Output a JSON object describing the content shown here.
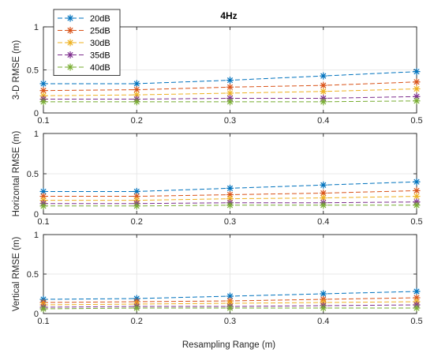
{
  "figure": {
    "title": "4Hz",
    "xlabel": "Resampling Range (m)",
    "legend": [
      "20dB",
      "25dB",
      "30dB",
      "35dB",
      "40dB"
    ],
    "legend_position": "top-left (outside first panel)"
  },
  "colors": {
    "20dB": "#0072BD",
    "25dB": "#D95319",
    "30dB": "#EDB120",
    "35dB": "#7E2F8E",
    "40dB": "#77AC30",
    "axis": "#262626",
    "grid": "#e3e3e3"
  },
  "chart_data": [
    {
      "type": "line",
      "title": "4Hz",
      "xlabel": "",
      "ylabel": "3-D RMSE (m)",
      "x": [
        0.1,
        0.2,
        0.3,
        0.4,
        0.5
      ],
      "xlim": [
        0.1,
        0.5
      ],
      "ylim": [
        0,
        1
      ],
      "xticks": [
        "0.1",
        "0.2",
        "0.3",
        "0.4",
        "0.5"
      ],
      "yticks": [
        "0",
        "0.5",
        "1"
      ],
      "grid": true,
      "legend": "top-left",
      "series": [
        {
          "name": "20dB",
          "values": [
            0.34,
            0.34,
            0.38,
            0.43,
            0.48
          ]
        },
        {
          "name": "25dB",
          "values": [
            0.26,
            0.27,
            0.3,
            0.32,
            0.36
          ]
        },
        {
          "name": "30dB",
          "values": [
            0.2,
            0.21,
            0.23,
            0.25,
            0.28
          ]
        },
        {
          "name": "35dB",
          "values": [
            0.16,
            0.16,
            0.17,
            0.17,
            0.19
          ]
        },
        {
          "name": "40dB",
          "values": [
            0.13,
            0.13,
            0.13,
            0.13,
            0.14
          ]
        }
      ]
    },
    {
      "type": "line",
      "title": "",
      "xlabel": "",
      "ylabel": "Horizontal RMSE (m)",
      "x": [
        0.1,
        0.2,
        0.3,
        0.4,
        0.5
      ],
      "xlim": [
        0.1,
        0.5
      ],
      "ylim": [
        0,
        1
      ],
      "xticks": [
        "0.1",
        "0.2",
        "0.3",
        "0.4",
        "0.5"
      ],
      "yticks": [
        "0",
        "0.5",
        "1"
      ],
      "grid": true,
      "series": [
        {
          "name": "20dB",
          "values": [
            0.28,
            0.28,
            0.32,
            0.36,
            0.4
          ]
        },
        {
          "name": "25dB",
          "values": [
            0.22,
            0.22,
            0.24,
            0.26,
            0.29
          ]
        },
        {
          "name": "30dB",
          "values": [
            0.17,
            0.17,
            0.19,
            0.2,
            0.22
          ]
        },
        {
          "name": "35dB",
          "values": [
            0.13,
            0.13,
            0.14,
            0.14,
            0.15
          ]
        },
        {
          "name": "40dB",
          "values": [
            0.1,
            0.1,
            0.11,
            0.11,
            0.11
          ]
        }
      ]
    },
    {
      "type": "line",
      "title": "",
      "xlabel": "Resampling Range (m)",
      "ylabel": "Vertical RMSE (m)",
      "x": [
        0.1,
        0.2,
        0.3,
        0.4,
        0.5
      ],
      "xlim": [
        0.1,
        0.5
      ],
      "ylim": [
        0,
        1
      ],
      "xticks": [
        "0.1",
        "0.2",
        "0.3",
        "0.4",
        "0.5"
      ],
      "yticks": [
        "0",
        "0.5",
        "1"
      ],
      "grid": true,
      "series": [
        {
          "name": "20dB",
          "values": [
            0.18,
            0.19,
            0.22,
            0.25,
            0.28
          ]
        },
        {
          "name": "25dB",
          "values": [
            0.14,
            0.15,
            0.16,
            0.18,
            0.2
          ]
        },
        {
          "name": "30dB",
          "values": [
            0.11,
            0.12,
            0.13,
            0.14,
            0.15
          ]
        },
        {
          "name": "35dB",
          "values": [
            0.08,
            0.09,
            0.09,
            0.1,
            0.11
          ]
        },
        {
          "name": "40dB",
          "values": [
            0.06,
            0.07,
            0.07,
            0.07,
            0.07
          ]
        }
      ]
    }
  ]
}
